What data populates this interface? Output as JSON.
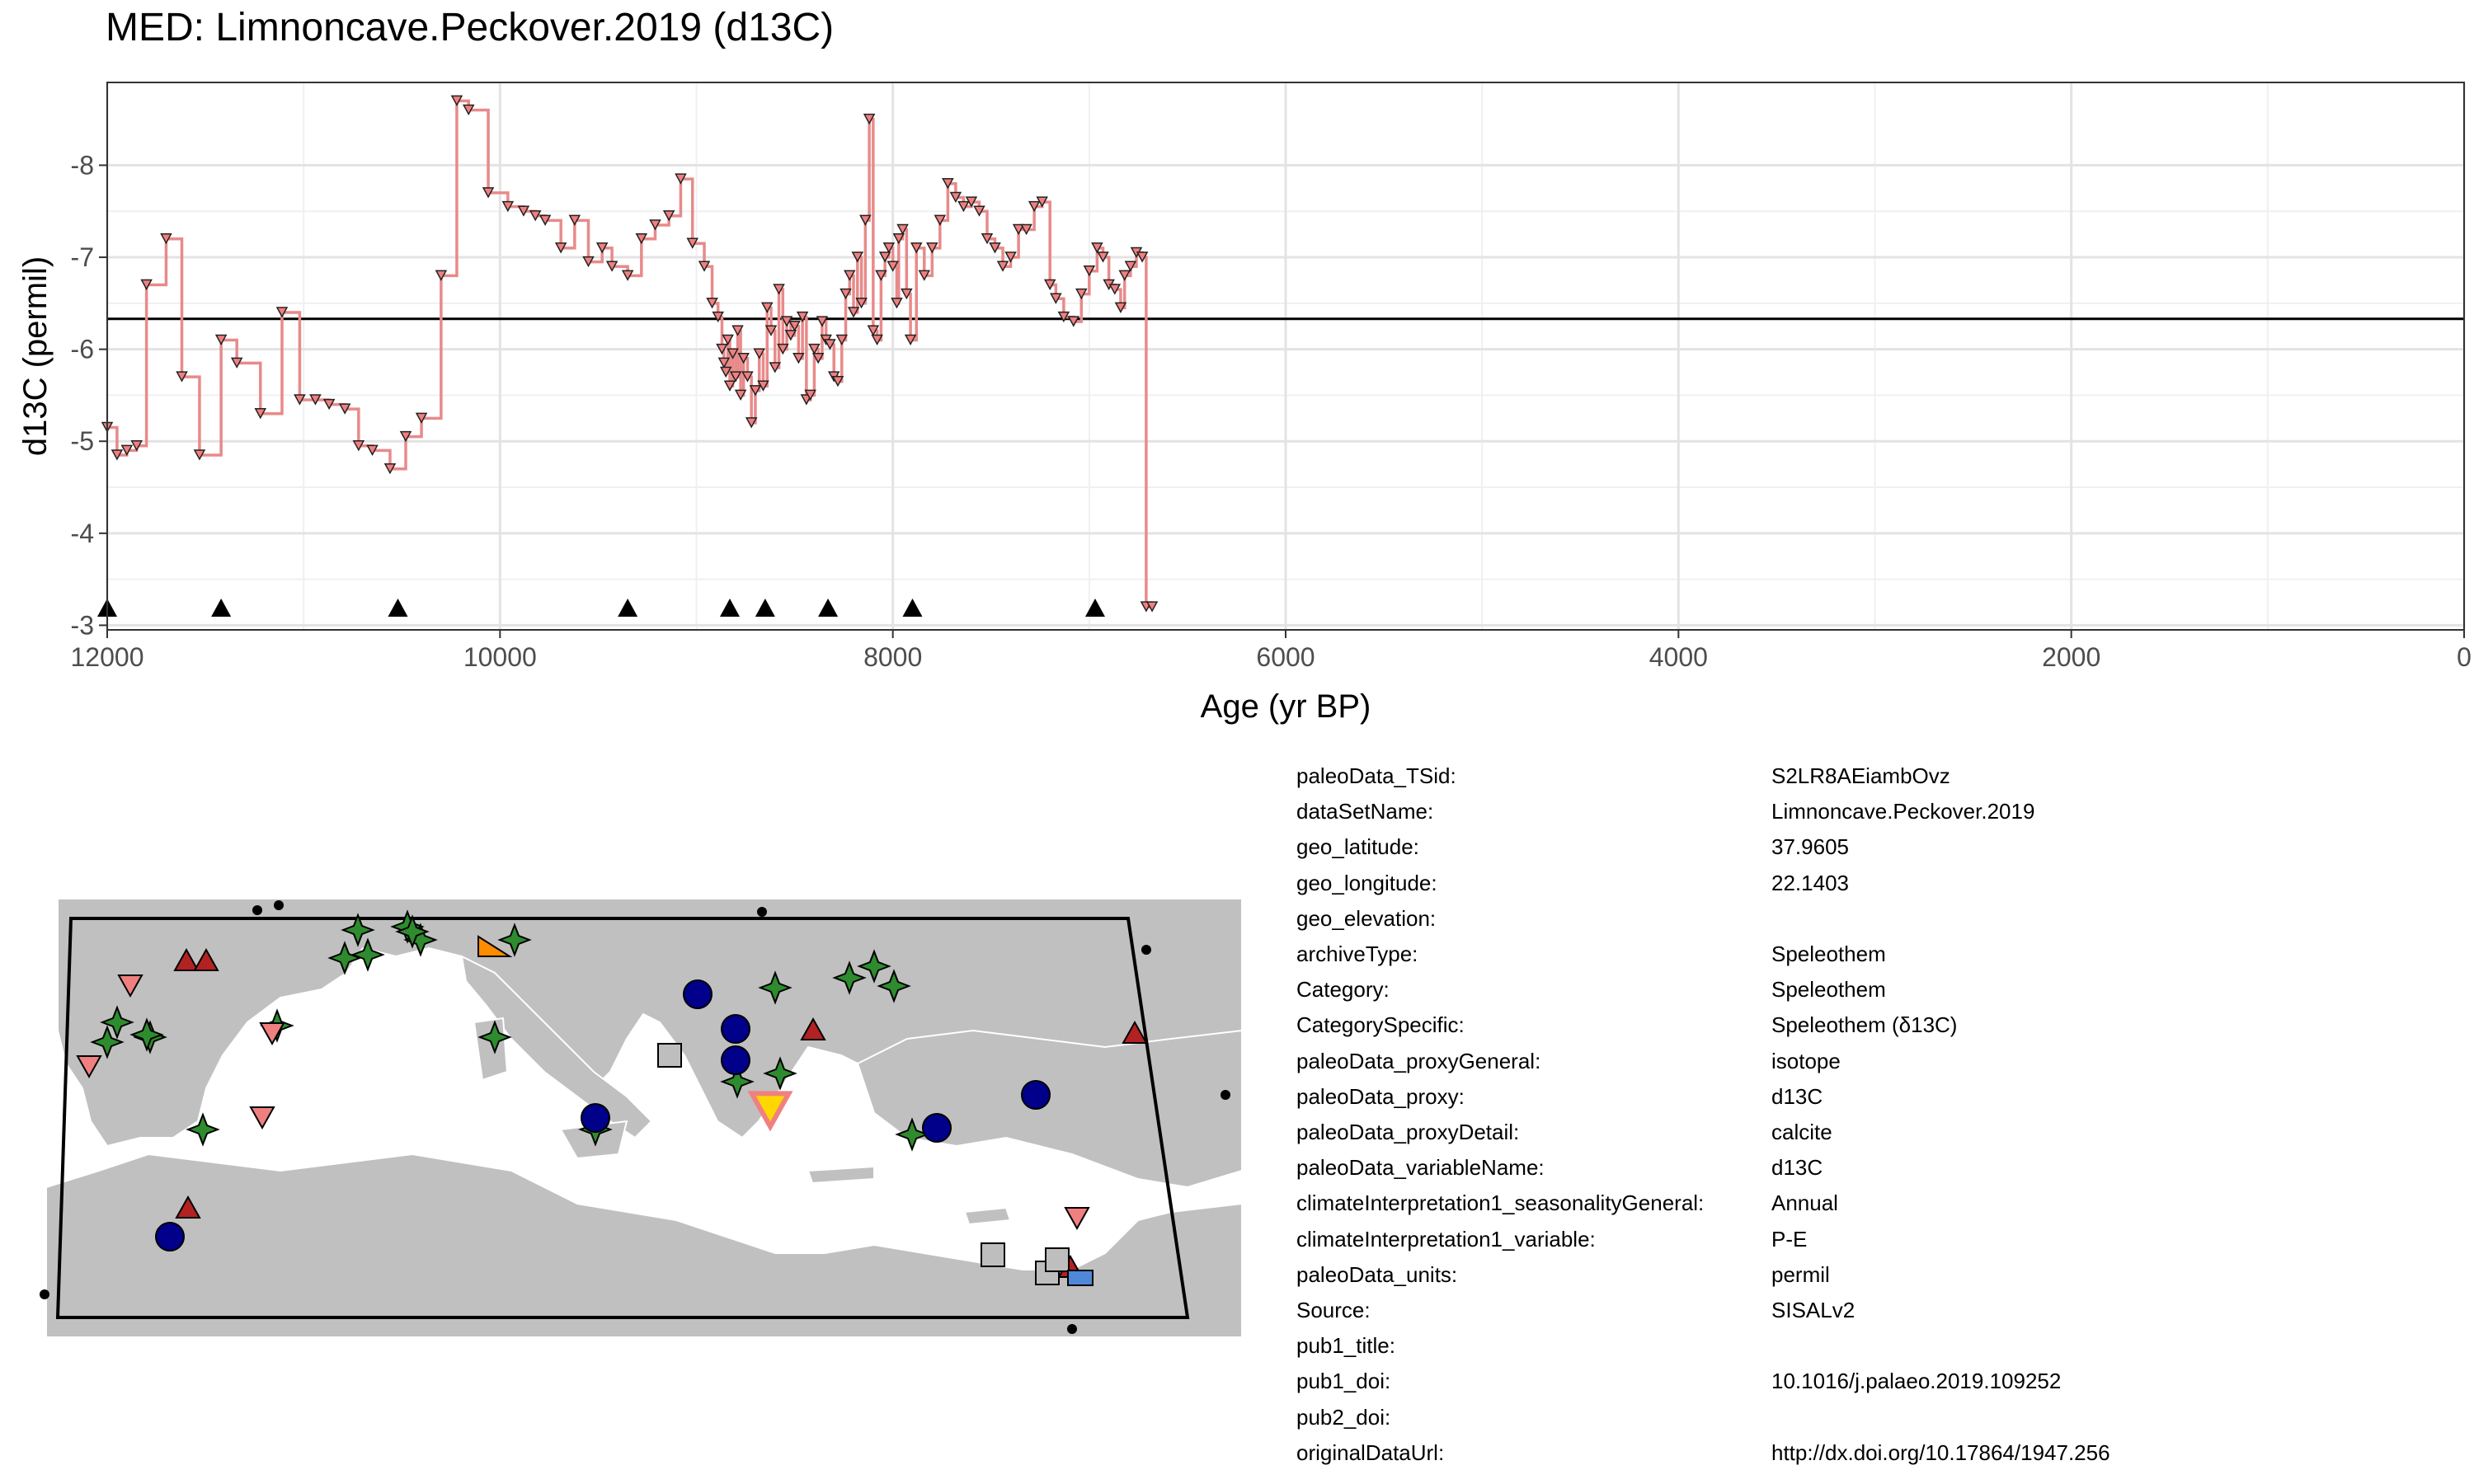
{
  "chart_data": {
    "type": "line",
    "title": "MED: Limnoncave.Peckover.2019 (d13C)",
    "xlabel": "Age (yr BP)",
    "ylabel": "d13C (permil)",
    "xlim": [
      12000,
      0
    ],
    "ylim": [
      -8.9,
      -2.95
    ],
    "y_reversed": true,
    "x_ticks": [
      12000,
      10000,
      8000,
      6000,
      4000,
      2000,
      0
    ],
    "x_tick_labels": [
      "12000",
      "10000",
      "8000",
      "6000",
      "4000",
      "2000",
      "0"
    ],
    "y_ticks": [
      -8,
      -7,
      -6,
      -5,
      -4,
      -3
    ],
    "y_tick_labels": [
      "-8",
      "-7",
      "-6",
      "-5",
      "-4",
      "-3"
    ],
    "reference_line": -6.33,
    "grid": true,
    "series_color": "#e88a8a",
    "marker_color": "#f08080",
    "series": [
      {
        "x": [
          12000,
          11950,
          11900,
          11850,
          11800,
          11700,
          11620,
          11530,
          11420,
          11340,
          11220,
          11110,
          11020,
          10940,
          10870,
          10790,
          10720,
          10650,
          10560,
          10480,
          10400,
          10300,
          10220,
          10160,
          10060,
          9960,
          9880,
          9820,
          9770,
          9690,
          9620,
          9550,
          9480,
          9430,
          9350,
          9280,
          9210,
          9140,
          9080,
          9020,
          8960,
          8920,
          8890,
          8870,
          8860,
          8850,
          8840,
          8830,
          8815,
          8800,
          8790,
          8775,
          8760,
          8740,
          8720,
          8700,
          8680,
          8660,
          8640,
          8620,
          8600,
          8580,
          8560,
          8540,
          8520,
          8500,
          8480,
          8460,
          8440,
          8420,
          8400,
          8380,
          8360,
          8340,
          8320,
          8300,
          8280,
          8260,
          8240,
          8220,
          8200,
          8180,
          8160,
          8140,
          8120,
          8100,
          8080,
          8060,
          8040,
          8020,
          8000,
          7980,
          7970,
          7950,
          7930,
          7910,
          7880,
          7840,
          7800,
          7760,
          7720,
          7680,
          7640,
          7600,
          7560,
          7520,
          7480,
          7440,
          7400,
          7360,
          7320,
          7280,
          7240,
          7200,
          7170,
          7130,
          7080,
          7040,
          7000,
          6960,
          6930,
          6900,
          6870,
          6840,
          6820,
          6790,
          6760,
          6730,
          6710,
          6680
        ],
        "y": [
          -5.15,
          -4.85,
          -4.9,
          -4.95,
          -6.7,
          -7.2,
          -5.7,
          -4.85,
          -6.1,
          -5.85,
          -5.3,
          -6.4,
          -5.45,
          -5.45,
          -5.4,
          -5.35,
          -4.95,
          -4.9,
          -4.7,
          -5.05,
          -5.25,
          -6.8,
          -8.7,
          -8.6,
          -7.7,
          -7.55,
          -7.5,
          -7.45,
          -7.4,
          -7.1,
          -7.4,
          -6.95,
          -7.1,
          -6.9,
          -6.8,
          -7.2,
          -7.35,
          -7.45,
          -7.85,
          -7.15,
          -6.9,
          -6.5,
          -6.35,
          -6.0,
          -5.85,
          -5.75,
          -6.1,
          -5.6,
          -5.95,
          -5.7,
          -6.2,
          -5.5,
          -5.9,
          -5.7,
          -5.2,
          -5.55,
          -5.95,
          -5.6,
          -6.45,
          -6.2,
          -5.8,
          -6.65,
          -6.0,
          -6.3,
          -6.15,
          -6.25,
          -5.9,
          -6.35,
          -5.45,
          -5.5,
          -6.0,
          -5.9,
          -6.3,
          -6.1,
          -6.05,
          -5.7,
          -5.65,
          -6.1,
          -6.6,
          -6.8,
          -6.4,
          -7.0,
          -6.5,
          -7.4,
          -8.5,
          -6.2,
          -6.1,
          -6.8,
          -7.0,
          -7.1,
          -6.9,
          -6.5,
          -7.2,
          -7.3,
          -6.6,
          -6.1,
          -7.1,
          -6.8,
          -7.1,
          -7.4,
          -7.8,
          -7.65,
          -7.55,
          -7.6,
          -7.5,
          -7.2,
          -7.1,
          -6.9,
          -7.0,
          -7.3,
          -7.3,
          -7.55,
          -7.6,
          -6.7,
          -6.55,
          -6.35,
          -6.3,
          -6.6,
          -6.85,
          -7.1,
          -7.0,
          -6.7,
          -6.65,
          -6.45,
          -6.8,
          -6.9,
          -7.05,
          -7.0,
          -3.2,
          -3.2
        ]
      }
    ],
    "triangle_markers_x": [
      12000,
      11420,
      10520,
      9350,
      8830,
      8650,
      8330,
      7900,
      6970
    ]
  },
  "map": {
    "site_markers": [
      {
        "shape": "star",
        "color": "#2e8b2e"
      },
      {
        "shape": "circle",
        "color": "#00008b"
      },
      {
        "shape": "triangle-up",
        "color": "#b22222"
      },
      {
        "shape": "triangle-down",
        "color": "#f08080"
      },
      {
        "shape": "square",
        "color": "#bebebe"
      },
      {
        "shape": "triangle-down",
        "color": "#ffd700"
      },
      {
        "shape": "triangle",
        "color": "#ff8c00"
      },
      {
        "shape": "square",
        "color": "#4f88d6"
      }
    ],
    "land_color": "#c0c0c0",
    "sea_color": "#ffffff"
  },
  "metadata": [
    {
      "key": "paleoData_TSid:",
      "value": "S2LR8AEiambOvz"
    },
    {
      "key": "dataSetName:",
      "value": "Limnoncave.Peckover.2019"
    },
    {
      "key": "geo_latitude:",
      "value": "37.9605"
    },
    {
      "key": "geo_longitude:",
      "value": "22.1403"
    },
    {
      "key": "geo_elevation:",
      "value": ""
    },
    {
      "key": "archiveType:",
      "value": "Speleothem"
    },
    {
      "key": "Category:",
      "value": "Speleothem"
    },
    {
      "key": "CategorySpecific:",
      "value": "Speleothem (δ13C)"
    },
    {
      "key": "paleoData_proxyGeneral:",
      "value": "isotope"
    },
    {
      "key": "paleoData_proxy:",
      "value": "d13C"
    },
    {
      "key": "paleoData_proxyDetail:",
      "value": "calcite"
    },
    {
      "key": "paleoData_variableName:",
      "value": "d13C"
    },
    {
      "key": "climateInterpretation1_seasonalityGeneral:",
      "value": "Annual"
    },
    {
      "key": "climateInterpretation1_variable:",
      "value": "P-E"
    },
    {
      "key": "paleoData_units:",
      "value": "permil"
    },
    {
      "key": "Source:",
      "value": "SISALv2"
    },
    {
      "key": "pub1_title:",
      "value": ""
    },
    {
      "key": "pub1_doi:",
      "value": "10.1016/j.palaeo.2019.109252"
    },
    {
      "key": "pub2_doi:",
      "value": ""
    },
    {
      "key": "originalDataUrl:",
      "value": "http://dx.doi.org/10.17864/1947.256"
    }
  ]
}
